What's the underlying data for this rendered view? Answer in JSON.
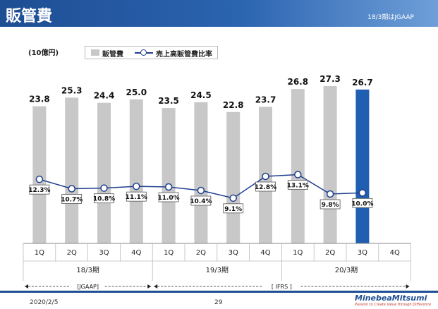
{
  "header": {
    "title": "販管費",
    "note": "18/3期はJGAAP"
  },
  "unit_label": "(10億円)",
  "legend": {
    "bar_label": "販管費",
    "line_label": "売上高販管費比率"
  },
  "colors": {
    "bar": "#c8c8c8",
    "bar_highlight": "#1f5eb0",
    "line": "#1f3f8f"
  },
  "chart_data": {
    "type": "bar",
    "categories": [
      "1Q",
      "2Q",
      "3Q",
      "4Q",
      "1Q",
      "2Q",
      "3Q",
      "4Q",
      "1Q",
      "2Q",
      "3Q",
      "4Q"
    ],
    "period_groups": [
      {
        "label": "18/3期",
        "count": 4
      },
      {
        "label": "19/3期",
        "count": 4
      },
      {
        "label": "20/3期",
        "count": 4
      }
    ],
    "standard_groups": [
      {
        "label": "[JGAAP]",
        "count": 4
      },
      {
        "label": "[ IFRS ]",
        "count": 8
      }
    ],
    "series": [
      {
        "name": "販管費",
        "type": "bar",
        "values": [
          23.8,
          25.3,
          24.4,
          25.0,
          23.5,
          24.5,
          22.8,
          23.7,
          26.8,
          27.3,
          26.7,
          null
        ],
        "value_labels": [
          "23.8",
          "25.3",
          "24.4",
          "25.0",
          "23.5",
          "24.5",
          "22.8",
          "23.7",
          "26.8",
          "27.3",
          "26.7",
          ""
        ],
        "highlight_index": 10
      },
      {
        "name": "売上高販管費比率",
        "type": "line",
        "values": [
          12.3,
          10.7,
          10.8,
          11.1,
          11.0,
          10.4,
          9.1,
          12.8,
          13.1,
          9.8,
          10.0,
          null
        ],
        "value_labels": [
          "12.3%",
          "10.7%",
          "10.8%",
          "11.1%",
          "11.0%",
          "10.4%",
          "9.1%",
          "12.8%",
          "13.1%",
          "9.8%",
          "10.0%",
          ""
        ]
      }
    ]
  },
  "footer": {
    "date": "2020/2/5",
    "page": "29",
    "brand": "MinebeaMitsumi",
    "tagline": "Passion to Create Value through Difference"
  }
}
